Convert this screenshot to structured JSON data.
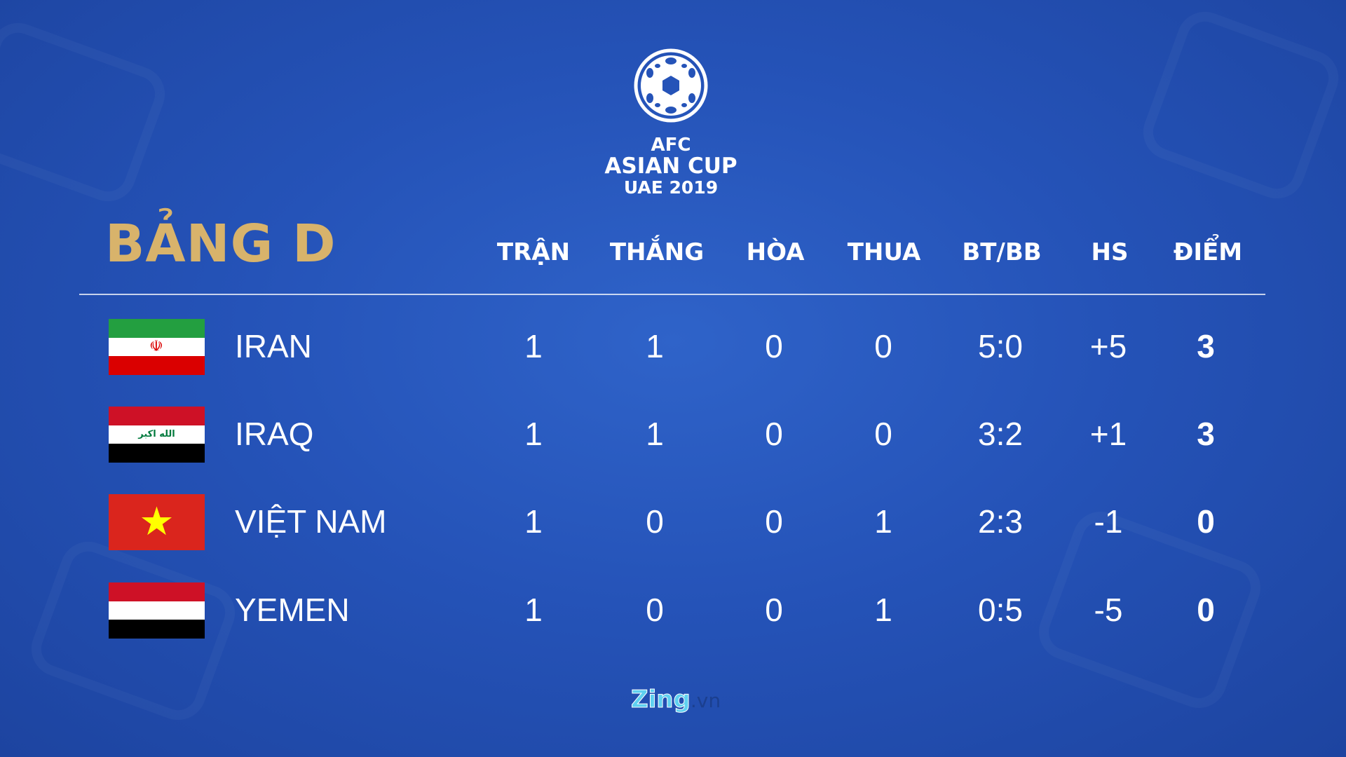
{
  "logo": {
    "line1": "AFC",
    "line2": "ASIAN CUP",
    "line3": "UAE 2019"
  },
  "title": "BẢNG D",
  "headers": [
    "TRẬN",
    "THẮNG",
    "HÒA",
    "THUA",
    "BT/BB",
    "HS",
    "ĐIỂM"
  ],
  "rows": [
    {
      "team": "IRAN",
      "flag": "iran-flag",
      "values": [
        "1",
        "1",
        "0",
        "0",
        "5:0",
        "+5",
        "3"
      ]
    },
    {
      "team": "IRAQ",
      "flag": "iraq-flag",
      "values": [
        "1",
        "1",
        "0",
        "0",
        "3:2",
        "+1",
        "3"
      ]
    },
    {
      "team": "VIỆT NAM",
      "flag": "vietnam-flag",
      "values": [
        "1",
        "0",
        "0",
        "1",
        "2:3",
        "-1",
        "0"
      ]
    },
    {
      "team": "YEMEN",
      "flag": "yemen-flag",
      "values": [
        "1",
        "0",
        "0",
        "1",
        "0:5",
        "-5",
        "0"
      ]
    }
  ],
  "footer": {
    "brand": "Zing",
    "domain": ".vn"
  },
  "colors": {
    "title": "#d8b36b",
    "background": "#2553b8"
  }
}
